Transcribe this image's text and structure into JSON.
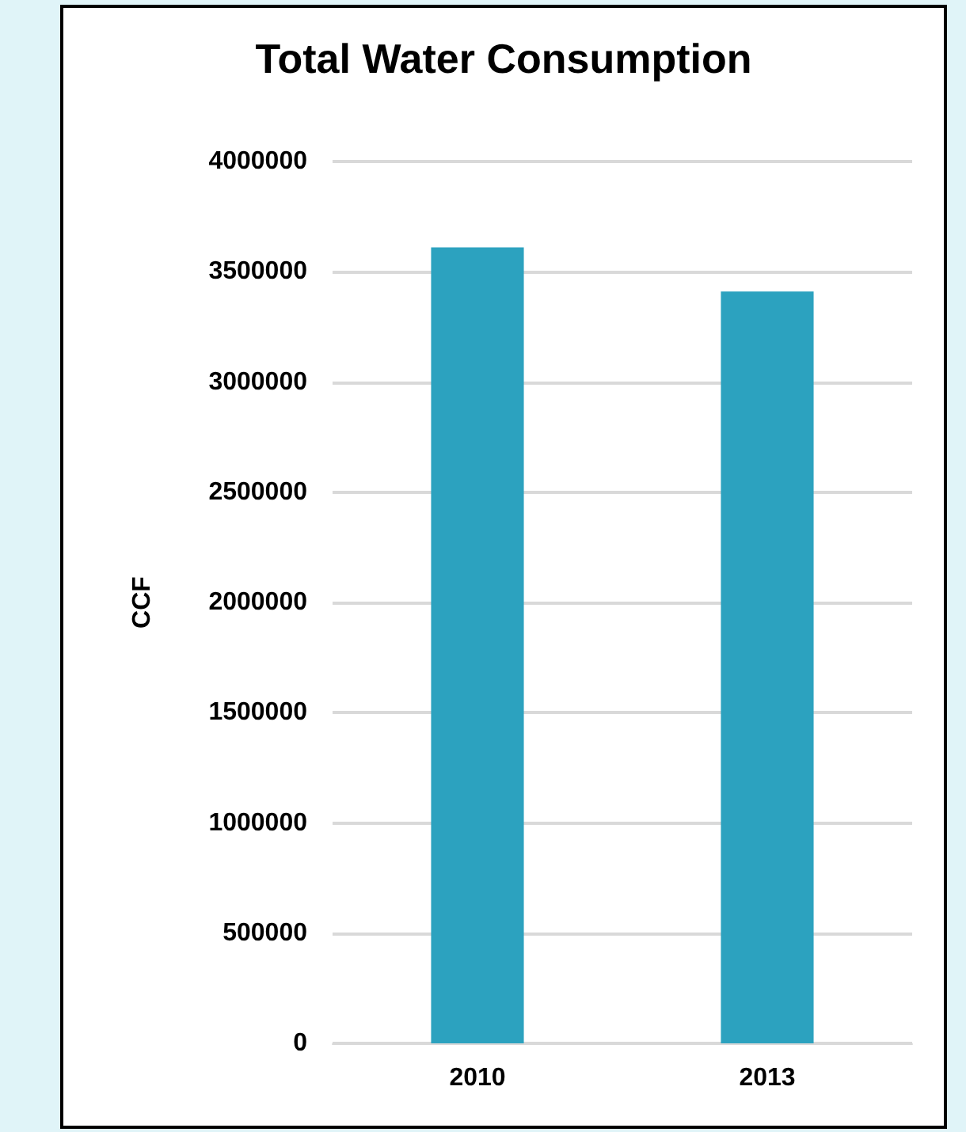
{
  "chart_data": {
    "type": "bar",
    "title": "Total Water Consumption",
    "ylabel": "CCF",
    "categories": [
      "2010",
      "2013"
    ],
    "values": [
      3610000,
      3410000
    ],
    "color": "#2ca2bf",
    "ylim": [
      0,
      4000000
    ],
    "yticks": [
      0,
      500000,
      1000000,
      1500000,
      2000000,
      2500000,
      3000000,
      3500000,
      4000000
    ],
    "grid": "y"
  }
}
